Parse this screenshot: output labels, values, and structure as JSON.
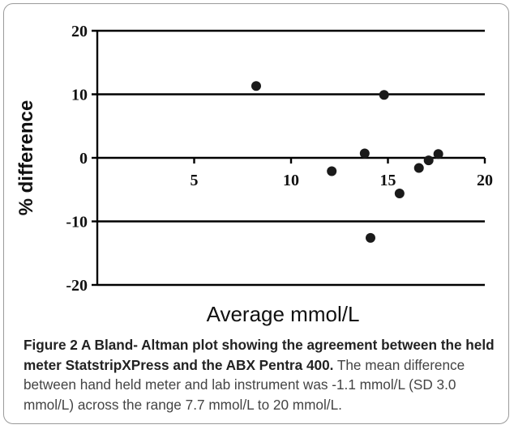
{
  "chart_data": {
    "type": "scatter",
    "title": "",
    "xlabel": "Average mmol/L",
    "ylabel": "% difference",
    "xlim": [
      0,
      20
    ],
    "ylim": [
      -20,
      20
    ],
    "x_ticks": [
      "5",
      "10",
      "15",
      "20"
    ],
    "y_ticks": [
      "20",
      "10",
      "0",
      "-10",
      "-20"
    ],
    "y_tick_values": [
      20,
      10,
      0,
      -10,
      -20
    ],
    "x_tick_values": [
      5,
      10,
      15,
      20
    ],
    "reference_lines": [
      20,
      10,
      0,
      -10,
      -20
    ],
    "grid": false,
    "points": [
      {
        "x": 8.2,
        "y": 11.3
      },
      {
        "x": 12.1,
        "y": -2.1
      },
      {
        "x": 13.8,
        "y": 0.7
      },
      {
        "x": 14.1,
        "y": -12.6
      },
      {
        "x": 14.8,
        "y": 9.9
      },
      {
        "x": 15.6,
        "y": -5.6
      },
      {
        "x": 16.6,
        "y": -1.6
      },
      {
        "x": 17.1,
        "y": -0.4
      },
      {
        "x": 17.6,
        "y": 0.6
      }
    ],
    "marker_color": "#1a1a1a",
    "line_color": "#000000"
  },
  "caption": {
    "bold": "Figure 2 A Bland- Altman plot showing the agreement between the held meter StatstripXPress and the ABX Pentra 400.",
    "text": " The mean difference between hand held meter and lab instrument was -1.1 mmol/L (SD 3.0 mmol/L) across the range 7.7 mmol/L to 20 mmol/L."
  }
}
